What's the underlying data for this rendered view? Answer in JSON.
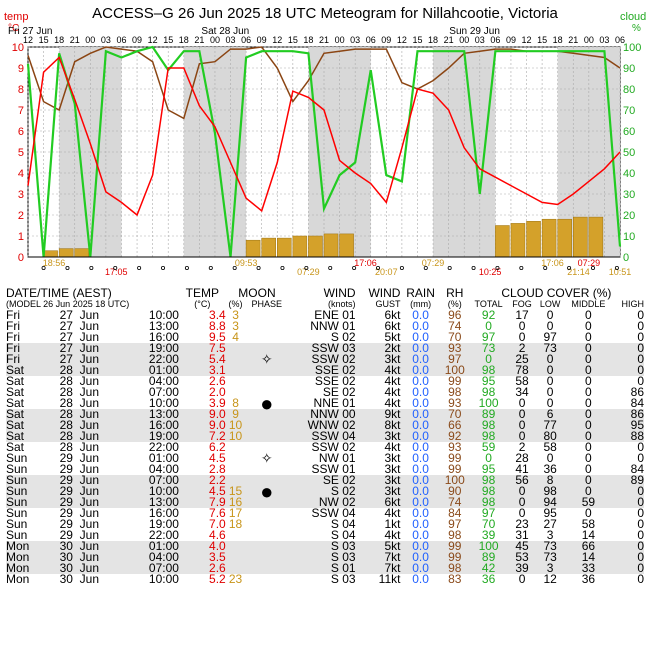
{
  "title": "ACCESS–G  26 Jun 2025 18 UTC  Meteogram for Nillahcootie, Victoria",
  "left_axis_label": "temp",
  "left_axis_unit": "°C",
  "right_axis_label": "cloud",
  "right_axis_unit": "%",
  "day_labels": [
    "Fri 27 Jun",
    "Sat 28 Jun",
    "Sun 29 Jun"
  ],
  "hour_labels": [
    "12",
    "15",
    "18",
    "21",
    "00",
    "03",
    "06",
    "09",
    "12",
    "15",
    "18",
    "21",
    "00",
    "03",
    "06",
    "09",
    "12",
    "15",
    "18",
    "21",
    "00",
    "03",
    "06",
    "09"
  ],
  "sun_times": [
    "18:56",
    "17:05",
    "09:53",
    "07:29",
    "17:06",
    "20:07",
    "07:29",
    "10:25",
    "17:06",
    "21:14",
    "07:29",
    "10:51"
  ],
  "colors": {
    "temp": "#ff0000",
    "rh": "#8b4513",
    "cloud": "#22cc22",
    "rain_bar": "#d4a12a",
    "night": "#d8d8d8",
    "grid": "#999999"
  },
  "chart_data": {
    "type": "line",
    "x_hours": [
      0,
      3,
      6,
      9,
      12,
      15,
      18,
      21,
      24,
      27,
      30,
      33,
      36,
      39,
      42,
      45,
      48,
      51,
      54,
      57,
      60,
      63,
      66,
      69,
      72,
      75,
      78,
      81,
      84,
      87,
      90,
      93,
      96,
      99,
      102,
      105,
      108,
      111,
      114
    ],
    "x_axis_labels": [
      "12",
      "15",
      "18",
      "21",
      "00",
      "03",
      "06",
      "09",
      "12",
      "15",
      "18",
      "21",
      "00",
      "03",
      "06",
      "09",
      "12",
      "15",
      "18",
      "21",
      "00",
      "03",
      "06",
      "09",
      "12",
      "15",
      "18",
      "21",
      "00",
      "03",
      "06",
      "09",
      "12",
      "15",
      "18",
      "21",
      "00",
      "03",
      "06"
    ],
    "series": [
      {
        "name": "temp",
        "axis": "left",
        "values": [
          3.4,
          8.8,
          9.5,
          7.5,
          5.4,
          3.1,
          2.6,
          2.0,
          3.9,
          9.0,
          9.0,
          7.2,
          6.2,
          4.5,
          2.8,
          2.2,
          4.5,
          7.9,
          7.6,
          7.0,
          4.6,
          4.0,
          3.5,
          2.6,
          5.2,
          8.0,
          7.8,
          7.0,
          5.2,
          4.2,
          3.8,
          3.4,
          3.0,
          2.6,
          2.5,
          3.0,
          3.6,
          4.2,
          5.0
        ]
      },
      {
        "name": "rh",
        "axis": "right",
        "values": [
          96,
          74,
          70,
          93,
          97,
          100,
          99,
          98,
          93,
          70,
          66,
          92,
          93,
          99,
          99,
          100,
          90,
          74,
          84,
          97,
          98,
          99,
          99,
          99,
          83,
          80,
          84,
          90,
          97,
          98,
          99,
          99,
          98,
          98,
          98,
          97,
          96,
          95,
          90
        ]
      },
      {
        "name": "cloud",
        "axis": "right",
        "values": [
          92,
          0,
          97,
          73,
          0,
          98,
          95,
          98,
          100,
          89,
          98,
          98,
          59,
          0,
          95,
          98,
          98,
          98,
          97,
          23,
          39,
          45,
          89,
          39,
          36,
          98,
          98,
          98,
          98,
          30,
          98,
          98,
          98,
          98,
          98,
          98,
          98,
          98,
          5
        ]
      }
    ],
    "rain_bars_mm_scaled": [
      0,
      0.3,
      0.4,
      0.4,
      0,
      0,
      0,
      0,
      0,
      0,
      0,
      0,
      0,
      0,
      0.8,
      0.9,
      0.9,
      1.0,
      1.0,
      1.1,
      1.1,
      0,
      0,
      0,
      0,
      0,
      0,
      0,
      0,
      0,
      1.5,
      1.6,
      1.7,
      1.8,
      1.8,
      1.9,
      1.9,
      0,
      0
    ],
    "ylim_left": [
      0,
      10
    ],
    "ylim_right": [
      0,
      100
    ],
    "yticks_left": [
      "0",
      "1",
      "2",
      "3",
      "4",
      "5",
      "6",
      "7",
      "8",
      "9",
      "10"
    ],
    "yticks_right": [
      "0",
      "10",
      "20",
      "30",
      "40",
      "50",
      "60",
      "70",
      "80",
      "90",
      "100"
    ]
  },
  "table": {
    "headers": [
      "DATE/TIME (AEST)",
      "TEMP",
      "MOON",
      "",
      "WIND",
      "WIND",
      "RAIN",
      "RH",
      "CLOUD COVER (%)"
    ],
    "subheaders": [
      "(MODEL 26 Jun 2025 18 UTC)",
      "(°C)",
      "(%)",
      "PHASE",
      "(knots)",
      "GUST",
      "(mm)",
      "(%)",
      "TOTAL",
      "FOG",
      "LOW",
      "MIDDLE",
      "HIGH"
    ],
    "rows": [
      [
        "Fri",
        "27",
        "Jun",
        "10:00",
        "3.4",
        "3",
        "",
        "ENE 01",
        "6kt",
        "0.0",
        "96",
        "92",
        "17",
        "0",
        "0",
        "0"
      ],
      [
        "Fri",
        "27",
        "Jun",
        "13:00",
        "8.8",
        "3",
        "",
        "NNW 01",
        "6kt",
        "0.0",
        "74",
        "0",
        "0",
        "0",
        "0",
        "0"
      ],
      [
        "Fri",
        "27",
        "Jun",
        "16:00",
        "9.5",
        "4",
        "",
        "S 02",
        "5kt",
        "0.0",
        "70",
        "97",
        "0",
        "97",
        "0",
        "0"
      ],
      [
        "Fri",
        "27",
        "Jun",
        "19:00",
        "7.5",
        "",
        "",
        "SSW 03",
        "2kt",
        "0.0",
        "93",
        "73",
        "2",
        "73",
        "0",
        "0"
      ],
      [
        "Fri",
        "27",
        "Jun",
        "22:00",
        "5.4",
        "",
        "✧",
        "SSW 02",
        "3kt",
        "0.0",
        "97",
        "0",
        "25",
        "0",
        "0",
        "0"
      ],
      [
        "Sat",
        "28",
        "Jun",
        "01:00",
        "3.1",
        "",
        "",
        "SSE 02",
        "4kt",
        "0.0",
        "100",
        "98",
        "78",
        "0",
        "0",
        "0"
      ],
      [
        "Sat",
        "28",
        "Jun",
        "04:00",
        "2.6",
        "",
        "",
        "SSE 02",
        "4kt",
        "0.0",
        "99",
        "95",
        "58",
        "0",
        "0",
        "0"
      ],
      [
        "Sat",
        "28",
        "Jun",
        "07:00",
        "2.0",
        "",
        "",
        "SE 02",
        "4kt",
        "0.0",
        "98",
        "98",
        "34",
        "0",
        "0",
        "86"
      ],
      [
        "Sat",
        "28",
        "Jun",
        "10:00",
        "3.9",
        "8",
        "●",
        "NNE 01",
        "4kt",
        "0.0",
        "93",
        "100",
        "0",
        "0",
        "0",
        "84"
      ],
      [
        "Sat",
        "28",
        "Jun",
        "13:00",
        "9.0",
        "9",
        "",
        "NNW 00",
        "9kt",
        "0.0",
        "70",
        "89",
        "0",
        "6",
        "0",
        "86"
      ],
      [
        "Sat",
        "28",
        "Jun",
        "16:00",
        "9.0",
        "10",
        "",
        "WNW 02",
        "8kt",
        "0.0",
        "66",
        "98",
        "0",
        "77",
        "0",
        "95"
      ],
      [
        "Sat",
        "28",
        "Jun",
        "19:00",
        "7.2",
        "10",
        "",
        "SSW 04",
        "3kt",
        "0.0",
        "92",
        "98",
        "0",
        "80",
        "0",
        "88"
      ],
      [
        "Sat",
        "28",
        "Jun",
        "22:00",
        "6.2",
        "",
        "",
        "SSW 02",
        "4kt",
        "0.0",
        "93",
        "59",
        "2",
        "58",
        "0",
        "0"
      ],
      [
        "Sun",
        "29",
        "Jun",
        "01:00",
        "4.5",
        "",
        "✧",
        "NW 01",
        "3kt",
        "0.0",
        "99",
        "0",
        "28",
        "0",
        "0",
        "0"
      ],
      [
        "Sun",
        "29",
        "Jun",
        "04:00",
        "2.8",
        "",
        "",
        "SSW 01",
        "3kt",
        "0.0",
        "99",
        "95",
        "41",
        "36",
        "0",
        "84"
      ],
      [
        "Sun",
        "29",
        "Jun",
        "07:00",
        "2.2",
        "",
        "",
        "SE 02",
        "3kt",
        "0.0",
        "100",
        "98",
        "56",
        "8",
        "0",
        "89"
      ],
      [
        "Sun",
        "29",
        "Jun",
        "10:00",
        "4.5",
        "15",
        "●",
        "S 02",
        "3kt",
        "0.0",
        "90",
        "98",
        "0",
        "98",
        "0",
        "0"
      ],
      [
        "Sun",
        "29",
        "Jun",
        "13:00",
        "7.9",
        "16",
        "",
        "NW 02",
        "6kt",
        "0.0",
        "74",
        "98",
        "0",
        "94",
        "59",
        "0"
      ],
      [
        "Sun",
        "29",
        "Jun",
        "16:00",
        "7.6",
        "17",
        "",
        "SSW 04",
        "4kt",
        "0.0",
        "84",
        "97",
        "0",
        "95",
        "0",
        "0"
      ],
      [
        "Sun",
        "29",
        "Jun",
        "19:00",
        "7.0",
        "18",
        "",
        "S 04",
        "1kt",
        "0.0",
        "97",
        "70",
        "23",
        "27",
        "58",
        "0"
      ],
      [
        "Sun",
        "29",
        "Jun",
        "22:00",
        "4.6",
        "",
        "",
        "S 04",
        "4kt",
        "0.0",
        "98",
        "39",
        "31",
        "3",
        "14",
        "0"
      ],
      [
        "Mon",
        "30",
        "Jun",
        "01:00",
        "4.0",
        "",
        "",
        "S 03",
        "5kt",
        "0.0",
        "99",
        "100",
        "45",
        "73",
        "66",
        "0"
      ],
      [
        "Mon",
        "30",
        "Jun",
        "04:00",
        "3.5",
        "",
        "",
        "S 03",
        "7kt",
        "0.0",
        "99",
        "89",
        "53",
        "73",
        "14",
        "0"
      ],
      [
        "Mon",
        "30",
        "Jun",
        "07:00",
        "2.6",
        "",
        "",
        "S 01",
        "7kt",
        "0.0",
        "98",
        "42",
        "39",
        "3",
        "33",
        "0"
      ],
      [
        "Mon",
        "30",
        "Jun",
        "10:00",
        "5.2",
        "23",
        "",
        "S 03",
        "11kt",
        "0.0",
        "83",
        "36",
        "0",
        "12",
        "36",
        "0"
      ]
    ]
  }
}
